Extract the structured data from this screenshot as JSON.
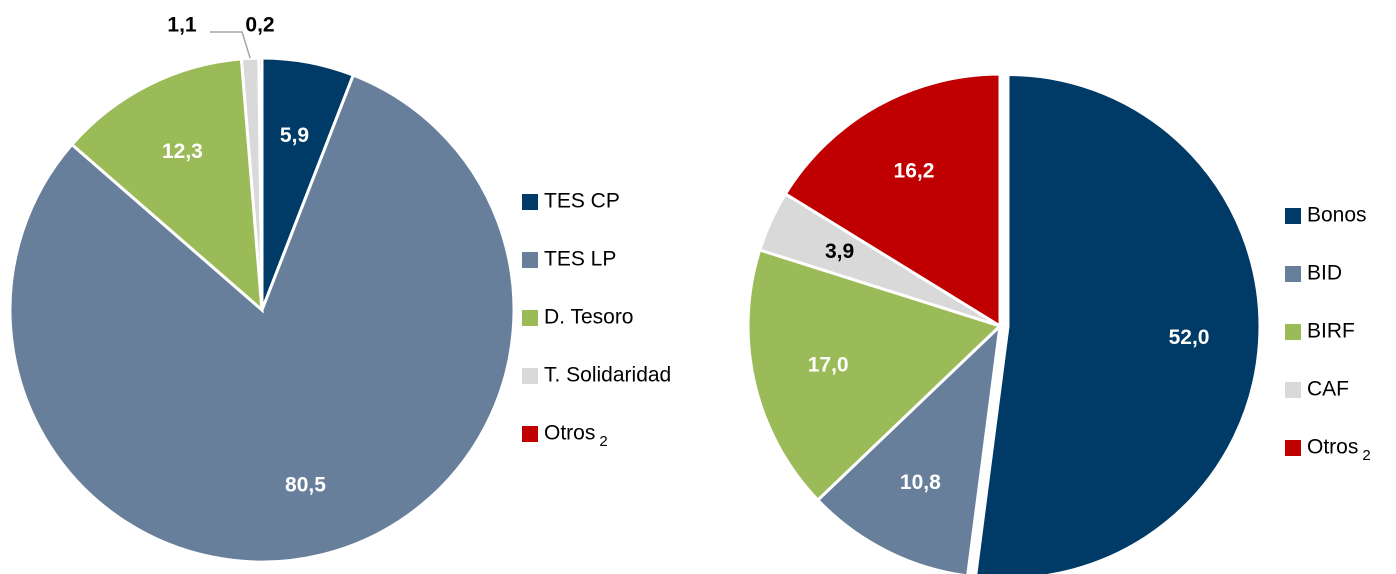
{
  "chart_data": [
    {
      "type": "pie",
      "categories": [
        "TES CP",
        "TES LP",
        "D. Tesoro",
        "T. Solidaridad",
        "Otros"
      ],
      "values": [
        5.9,
        80.5,
        12.3,
        1.1,
        0.2
      ],
      "value_labels": [
        "5,9",
        "80,5",
        "12,3",
        "1,1",
        "0,2"
      ],
      "colors": [
        "#003a66",
        "#687f9b",
        "#9bbb59",
        "#d9d9d9",
        "#c00000"
      ],
      "legend_footnote": "2"
    },
    {
      "type": "pie",
      "categories": [
        "Bonos",
        "BID",
        "BIRF",
        "CAF",
        "Otros"
      ],
      "values": [
        52.0,
        10.8,
        17.0,
        3.9,
        16.2
      ],
      "value_labels": [
        "52,0",
        "10,8",
        "17,0",
        "3,9",
        "16,2"
      ],
      "colors": [
        "#003a66",
        "#687f9b",
        "#9bbb59",
        "#d9d9d9",
        "#c00000"
      ],
      "legend_footnote": "2"
    }
  ]
}
